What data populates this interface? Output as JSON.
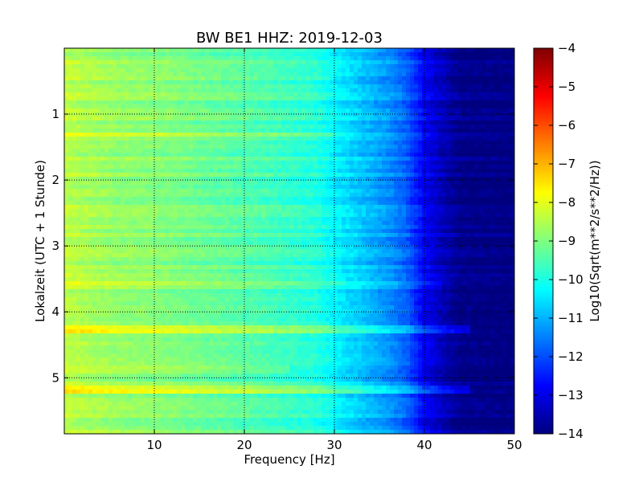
{
  "chart_data": {
    "type": "heatmap",
    "title": "BW BE1 HHZ: 2019-12-03",
    "xlabel": "Frequency [Hz]",
    "ylabel": "Lokalzeit (UTC + 1 Stunde)",
    "xlim": [
      0,
      50
    ],
    "ylim": [
      0,
      5.85
    ],
    "y_inverted": true,
    "x_ticks": [
      10,
      20,
      30,
      40,
      50
    ],
    "x_tick_labels": [
      "10",
      "20",
      "30",
      "40",
      "50"
    ],
    "y_ticks": [
      1,
      2,
      3,
      4,
      5
    ],
    "y_tick_labels": [
      "1",
      "2",
      "3",
      "4",
      "5"
    ],
    "grid": true,
    "grid_style": "dotted",
    "colormap": "jet",
    "colorbar": {
      "label": "Log10(Sqrt(m**2/s**2/Hz))",
      "range": [
        -14,
        -4
      ],
      "ticks": [
        -4,
        -5,
        -6,
        -7,
        -8,
        -9,
        -10,
        -11,
        -12,
        -13,
        -14
      ],
      "tick_labels": [
        "−4",
        "−5",
        "−6",
        "−7",
        "−8",
        "−9",
        "−10",
        "−11",
        "−12",
        "−13",
        "−14"
      ],
      "colors": [
        "#00007f",
        "#0000ff",
        "#007fff",
        "#00ffff",
        "#7fff7f",
        "#ffff00",
        "#ff7f00",
        "#ff0000",
        "#7f0000"
      ]
    },
    "spectrum_profile": {
      "frequency": [
        0,
        3,
        6,
        10,
        16,
        22,
        28,
        30,
        33,
        36,
        38,
        40,
        42,
        44,
        50
      ],
      "log_amplitude": [
        -8.4,
        -8.6,
        -8.8,
        -8.9,
        -9.2,
        -9.5,
        -9.9,
        -10.3,
        -10.8,
        -11.3,
        -11.8,
        -12.8,
        -13.4,
        -13.9,
        -14.0
      ]
    },
    "bands": [
      {
        "time": 4.28,
        "freq_max": 45,
        "log_amplitude_offset": 0.9
      },
      {
        "time": 5.19,
        "freq_max": 45,
        "log_amplitude_offset": 0.9
      },
      {
        "time": 3.6,
        "freq_max": 42,
        "log_amplitude_offset": 0.4
      },
      {
        "time": 0.46,
        "freq_max": 30,
        "log_amplitude_offset": 0.4
      },
      {
        "time": 1.3,
        "freq_max": 30,
        "log_amplitude_offset": 0.4
      },
      {
        "time": 4.87,
        "freq_max": 25,
        "log_amplitude_offset": 0.4
      }
    ]
  }
}
